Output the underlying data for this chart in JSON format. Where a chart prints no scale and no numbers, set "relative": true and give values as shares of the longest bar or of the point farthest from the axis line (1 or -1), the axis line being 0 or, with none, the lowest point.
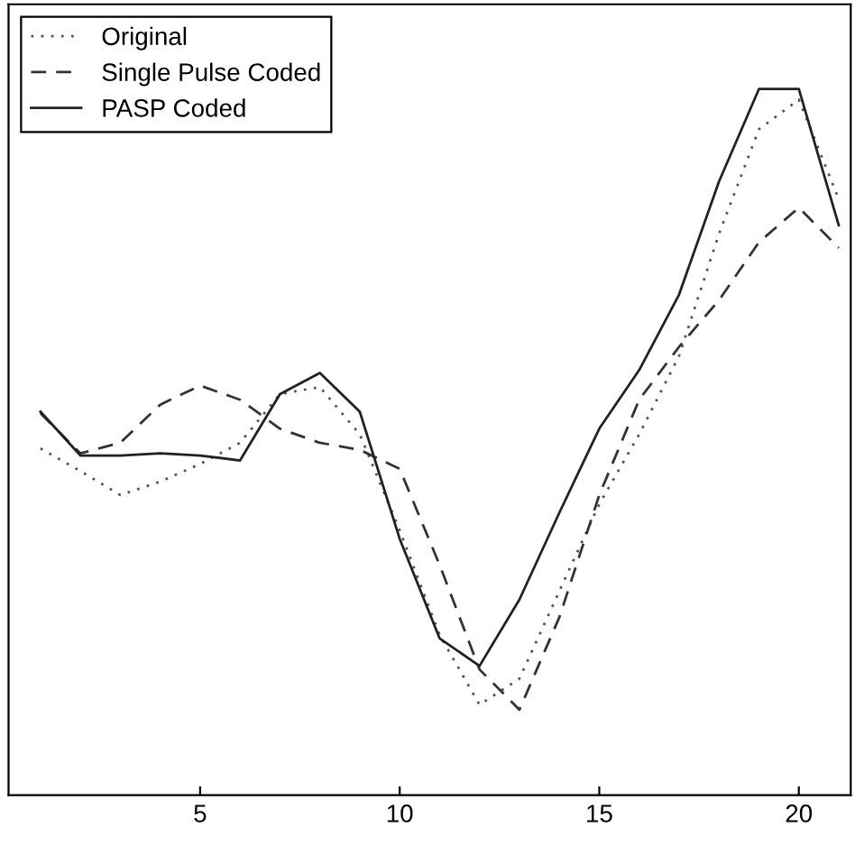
{
  "chart_data": {
    "type": "line",
    "relative": true,
    "x": [
      1,
      2,
      3,
      4,
      5,
      6,
      7,
      8,
      9,
      10,
      11,
      12,
      13,
      14,
      15,
      16,
      17,
      18,
      19,
      20,
      21
    ],
    "xlim": [
      0.2,
      21.3
    ],
    "xticks": [
      5,
      10,
      15,
      20
    ],
    "legend": "top left",
    "grid": false,
    "series": [
      {
        "name": "Original",
        "color": "#555555",
        "line_style": "dotted",
        "values": [
          0.491,
          0.459,
          0.425,
          0.444,
          0.469,
          0.499,
          0.568,
          0.578,
          0.511,
          0.375,
          0.227,
          0.128,
          0.165,
          0.289,
          0.412,
          0.511,
          0.622,
          0.795,
          0.943,
          0.985,
          0.844
        ]
      },
      {
        "name": "Single Pulse Coded",
        "color": "#333333",
        "line_style": "dashed",
        "values": [
          0.541,
          0.484,
          0.499,
          0.553,
          0.58,
          0.56,
          0.519,
          0.499,
          0.489,
          0.462,
          0.326,
          0.178,
          0.121,
          0.252,
          0.425,
          0.56,
          0.635,
          0.701,
          0.783,
          0.832,
          0.775
        ]
      },
      {
        "name": "PASP Coded",
        "color": "#222222",
        "line_style": "solid",
        "values": [
          0.543,
          0.481,
          0.481,
          0.484,
          0.481,
          0.474,
          0.568,
          0.598,
          0.543,
          0.363,
          0.222,
          0.183,
          0.277,
          0.4,
          0.519,
          0.602,
          0.709,
          0.869,
          1,
          1,
          0.807
        ]
      }
    ]
  }
}
